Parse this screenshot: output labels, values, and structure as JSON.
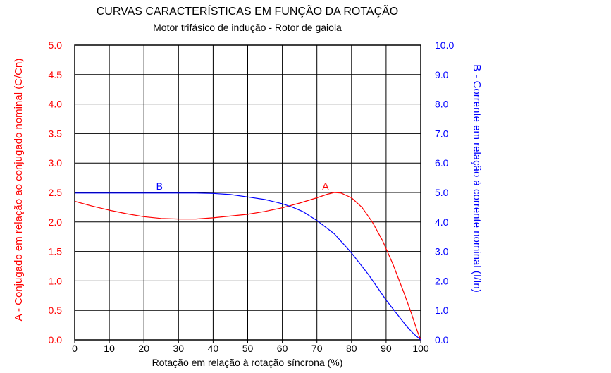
{
  "chart_data": {
    "type": "line",
    "title": "CURVAS CARACTERÍSTICAS EM FUNÇÃO DA ROTAÇÃO",
    "subtitle": "Motor trifásico de indução - Rotor de gaiola",
    "xlabel": "Rotação em relação à rotação síncrona (%)",
    "ylabel_left": "A - Conjugado em relação ao conjugado nominal (C/Cn)",
    "ylabel_right": "B - Corrente em relação à corrente nominal (I/In)",
    "xlim": [
      0,
      100
    ],
    "ylim_left": [
      0,
      5
    ],
    "ylim_right": [
      0,
      10
    ],
    "grid": true,
    "x_ticks": [
      "0",
      "10",
      "20",
      "30",
      "40",
      "50",
      "60",
      "70",
      "80",
      "90",
      "100"
    ],
    "y_ticks_left": [
      "0.0",
      "0.5",
      "1.0",
      "1.5",
      "2.0",
      "2.5",
      "3.0",
      "3.5",
      "4.0",
      "4.5",
      "5.0"
    ],
    "y_ticks_right": [
      "0.0",
      "1.0",
      "2.0",
      "3.0",
      "4.0",
      "5.0",
      "6.0",
      "7.0",
      "8.0",
      "9.0",
      "10.0"
    ],
    "series": [
      {
        "name": "A",
        "axis": "left",
        "color": "#ff0000",
        "x": [
          0,
          5,
          10,
          15,
          20,
          25,
          30,
          35,
          40,
          45,
          50,
          55,
          60,
          65,
          70,
          73,
          75,
          77,
          80,
          83,
          86,
          89,
          92,
          95,
          97,
          99,
          100
        ],
        "y": [
          2.35,
          2.27,
          2.2,
          2.14,
          2.09,
          2.06,
          2.05,
          2.05,
          2.07,
          2.1,
          2.13,
          2.18,
          2.24,
          2.32,
          2.41,
          2.47,
          2.5,
          2.49,
          2.41,
          2.25,
          2.0,
          1.68,
          1.28,
          0.82,
          0.5,
          0.15,
          0.0
        ]
      },
      {
        "name": "B",
        "axis": "right",
        "color": "#0000ff",
        "x": [
          0,
          10,
          20,
          30,
          35,
          40,
          45,
          50,
          55,
          60,
          63,
          66,
          70,
          75,
          80,
          85,
          90,
          93,
          96,
          98,
          100
        ],
        "y": [
          4.98,
          4.98,
          4.98,
          4.98,
          4.98,
          4.97,
          4.93,
          4.85,
          4.76,
          4.62,
          4.5,
          4.35,
          4.05,
          3.6,
          2.95,
          2.2,
          1.35,
          0.9,
          0.45,
          0.2,
          0.0
        ]
      }
    ],
    "annotations": [
      {
        "text": "A",
        "x": 72.5,
        "y": 2.55,
        "color": "#ff0000",
        "axis": "left"
      },
      {
        "text": "B",
        "x": 24.5,
        "y": 5.1,
        "color": "#0000ff",
        "axis": "right"
      }
    ]
  }
}
